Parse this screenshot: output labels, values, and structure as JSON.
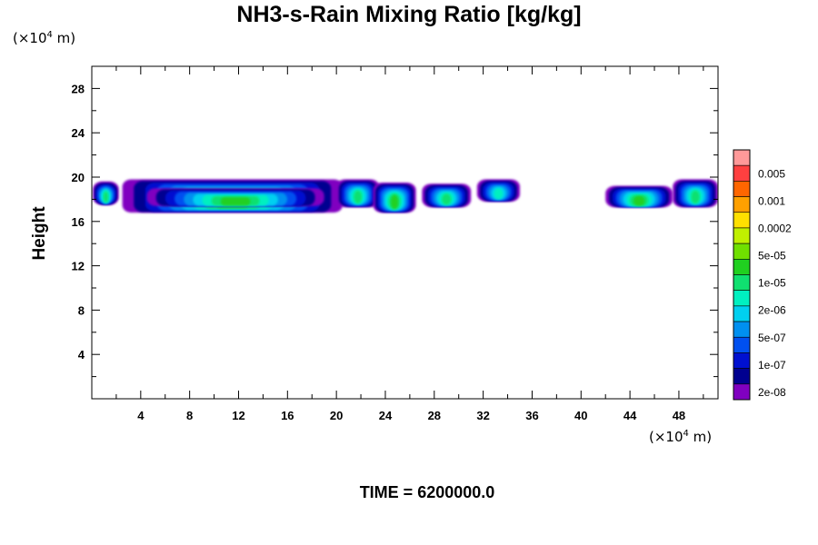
{
  "title": "NH3-s-Rain Mixing Ratio [kg/kg]",
  "time_label": "TIME = 6200000.0",
  "y_unit_prefix": "(×10",
  "y_unit_exp": "4",
  "y_unit_suffix": " m)",
  "x_unit_prefix": "(×10",
  "x_unit_exp": "4",
  "x_unit_suffix": " m)",
  "chart_data": {
    "type": "heatmap",
    "title": "NH3-s-Rain Mixing Ratio [kg/kg]",
    "xlabel": "",
    "ylabel": "Height",
    "x_unit": "(×10^4 m)",
    "y_unit": "(×10^4 m)",
    "xlim": [
      0,
      51.2
    ],
    "ylim": [
      0,
      30
    ],
    "x_ticks": [
      4,
      8,
      12,
      16,
      20,
      24,
      28,
      32,
      36,
      40,
      44,
      48
    ],
    "y_ticks": [
      4,
      8,
      12,
      16,
      20,
      24,
      28
    ],
    "colorbar": {
      "labels": [
        "0.005",
        "0.001",
        "0.0002",
        "5e-05",
        "1e-05",
        "2e-06",
        "5e-07",
        "1e-07",
        "2e-08"
      ],
      "colors": [
        "#ff9999",
        "#ff4040",
        "#ff6600",
        "#ffa000",
        "#ffe000",
        "#c0f000",
        "#70e000",
        "#20d020",
        "#10e070",
        "#00f0c0",
        "#00d0f0",
        "#0090f0",
        "#0050f0",
        "#0010d0",
        "#000090",
        "#8000c0"
      ]
    },
    "blobs": [
      {
        "x": [
          0.1,
          2.2
        ],
        "y": [
          17.5,
          19.6
        ],
        "level": 8
      },
      {
        "x": [
          2.5,
          20.5
        ],
        "y": [
          16.8,
          19.8
        ],
        "level": 9
      },
      {
        "x": [
          4.5,
          19.0
        ],
        "y": [
          17.4,
          19.0
        ],
        "level": 10
      },
      {
        "x": [
          20.0,
          23.5
        ],
        "y": [
          17.3,
          19.8
        ],
        "level": 8
      },
      {
        "x": [
          23.0,
          26.5
        ],
        "y": [
          16.8,
          19.5
        ],
        "level": 9
      },
      {
        "x": [
          27.0,
          31.0
        ],
        "y": [
          17.3,
          19.4
        ],
        "level": 8
      },
      {
        "x": [
          31.5,
          35.0
        ],
        "y": [
          17.8,
          19.8
        ],
        "level": 7
      },
      {
        "x": [
          42.0,
          47.5
        ],
        "y": [
          17.3,
          19.2
        ],
        "level": 9
      },
      {
        "x": [
          47.5,
          51.2
        ],
        "y": [
          17.3,
          19.8
        ],
        "level": 8
      }
    ],
    "grid": false
  }
}
